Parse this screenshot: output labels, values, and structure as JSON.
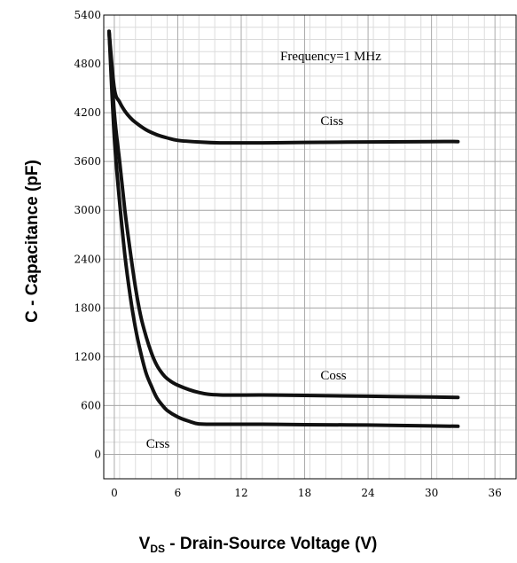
{
  "chart_data": {
    "type": "line",
    "xlabel": {
      "main": "V",
      "sub": "DS",
      "rest": " - Drain-Source Voltage (V)"
    },
    "ylabel": "C - Capacitance (pF)",
    "annotation": "Frequency=1 MHz",
    "xlim": [
      -1,
      38
    ],
    "ylim": [
      -300,
      5400
    ],
    "xticks": [
      0,
      6,
      12,
      18,
      24,
      30,
      36
    ],
    "yticks": [
      0,
      600,
      1200,
      1800,
      2400,
      3000,
      3600,
      4200,
      4800,
      5400
    ],
    "grid": true,
    "series": [
      {
        "name": "Ciss",
        "x": [
          -0.5,
          0,
          0.5,
          1,
          1.5,
          2,
          3,
          4,
          5,
          6,
          8,
          10,
          14,
          18,
          24,
          30,
          32.5
        ],
        "y": [
          5200,
          4500,
          4330,
          4220,
          4140,
          4080,
          3990,
          3930,
          3890,
          3860,
          3840,
          3830,
          3830,
          3835,
          3840,
          3845,
          3845
        ]
      },
      {
        "name": "Coss",
        "x": [
          -0.5,
          0,
          0.5,
          1,
          1.5,
          2,
          2.5,
          3,
          3.5,
          4,
          4.5,
          5,
          6,
          8,
          10,
          14,
          18,
          24,
          30,
          32.5
        ],
        "y": [
          5200,
          4200,
          3600,
          3000,
          2500,
          2050,
          1700,
          1450,
          1250,
          1100,
          1000,
          930,
          850,
          760,
          730,
          730,
          725,
          715,
          705,
          700
        ]
      },
      {
        "name": "Crss",
        "x": [
          -0.5,
          0,
          0.5,
          1,
          1.5,
          2,
          2.5,
          3,
          3.5,
          4,
          4.5,
          5,
          6,
          7,
          8,
          10,
          14,
          18,
          24,
          30,
          32.5
        ],
        "y": [
          5200,
          3900,
          3100,
          2450,
          1950,
          1550,
          1250,
          1000,
          840,
          700,
          610,
          540,
          460,
          410,
          375,
          370,
          370,
          365,
          360,
          350,
          345
        ]
      }
    ],
    "curve_labels": [
      {
        "text": "Ciss",
        "x": 19.5,
        "y": 4050
      },
      {
        "text": "Coss",
        "x": 19.5,
        "y": 920
      },
      {
        "text": "Crss",
        "x": 3,
        "y": 80
      }
    ]
  }
}
